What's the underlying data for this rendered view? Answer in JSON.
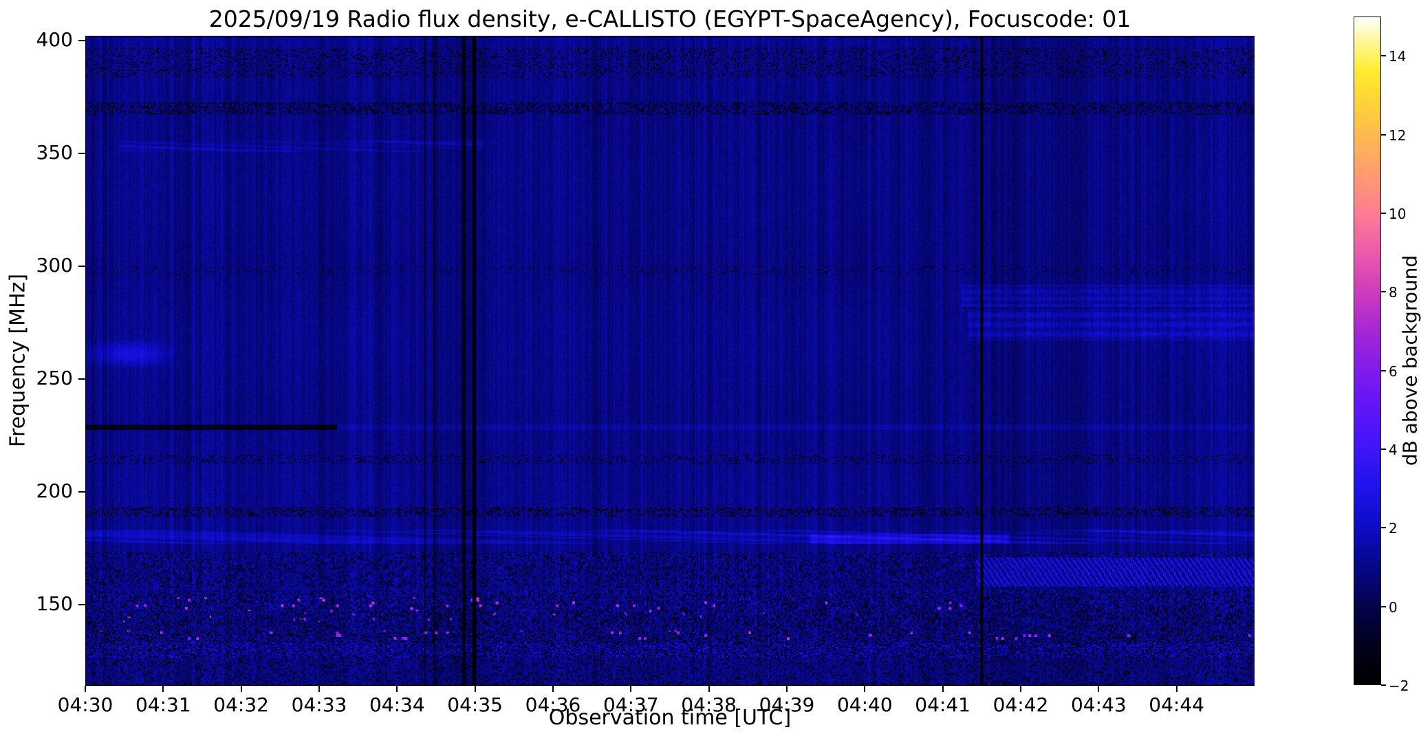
{
  "chart_data": {
    "type": "heatmap",
    "title": "2025/09/19  Radio flux density, e-CALLISTO (EGYPT-SpaceAgency), Focuscode: 01",
    "xlabel": "Observation time [UTC]",
    "ylabel": "Frequency [MHz]",
    "x_ticks": [
      "04:30",
      "04:31",
      "04:32",
      "04:33",
      "04:34",
      "04:35",
      "04:36",
      "04:37",
      "04:38",
      "04:39",
      "04:40",
      "04:41",
      "04:42",
      "04:43",
      "04:44"
    ],
    "x_range": [
      "04:30:00",
      "04:45:00"
    ],
    "y_ticks": [
      400,
      350,
      300,
      250,
      200,
      150
    ],
    "y_range": [
      402,
      114
    ],
    "grid": false,
    "colorbar": {
      "label": "dB above background",
      "vmin": -2,
      "vmax": 15,
      "ticks": [
        -2,
        0,
        2,
        4,
        6,
        8,
        10,
        12,
        14
      ],
      "tick_labels": [
        "−2",
        "0",
        "2",
        "4",
        "6",
        "8",
        "10",
        "12",
        "14"
      ]
    },
    "colormap_stops": [
      [
        0.0,
        "#000000"
      ],
      [
        0.055,
        "#01011a"
      ],
      [
        0.118,
        "#03034e"
      ],
      [
        0.176,
        "#07078b"
      ],
      [
        0.235,
        "#0d0dc6"
      ],
      [
        0.3,
        "#2113ee"
      ],
      [
        0.353,
        "#4214fb"
      ],
      [
        0.44,
        "#6e17f4"
      ],
      [
        0.53,
        "#a527d8"
      ],
      [
        0.59,
        "#cf3cbd"
      ],
      [
        0.65,
        "#ec5bab"
      ],
      [
        0.71,
        "#ff7e93"
      ],
      [
        0.78,
        "#ffa367"
      ],
      [
        0.853,
        "#ffc940"
      ],
      [
        0.92,
        "#ffeb2e"
      ],
      [
        0.965,
        "#fff795"
      ],
      [
        1.0,
        "#ffffff"
      ]
    ],
    "background_level_db": 0.8,
    "seed": 7,
    "features": [
      {
        "name": "band-390-dark-speckle",
        "f0": 384,
        "f1": 397,
        "t0": 0,
        "t1": 1,
        "type": "speckle",
        "p": 0.28,
        "lo": -2.2,
        "hi": 1.0
      },
      {
        "name": "band-370-dark-speckle",
        "f0": 367.5,
        "f1": 372.5,
        "t0": 0,
        "t1": 1,
        "type": "speckle",
        "p": 0.55,
        "lo": -2.5,
        "hi": 1.4
      },
      {
        "name": "band-353-bright-left",
        "f0": 351,
        "f1": 356,
        "t0": 0.03,
        "t1": 0.34,
        "type": "patchy",
        "amt": 1.1,
        "scale": 30
      },
      {
        "name": "band-298-faint-speckle",
        "f0": 296,
        "f1": 300.5,
        "t0": 0,
        "t1": 1,
        "type": "speckle",
        "p": 0.14,
        "lo": -1.6,
        "hi": 0.6
      },
      {
        "name": "band-287-right-bright",
        "f0": 282,
        "f1": 292,
        "t0": 0.75,
        "t1": 1,
        "type": "rowband",
        "amt": 1.2,
        "period": 3.2
      },
      {
        "name": "band-274-right-bright",
        "f0": 267,
        "f1": 281,
        "t0": 0.755,
        "t1": 1,
        "type": "rowband",
        "amt": 1.5,
        "period": 4.2
      },
      {
        "name": "blob-262-at-0430",
        "f0": 255,
        "f1": 267,
        "t0": 0.0,
        "t1": 0.075,
        "type": "blob",
        "amt": 1.5
      },
      {
        "name": "line-228-dark-left",
        "f0": 227,
        "f1": 229.5,
        "t0": 0,
        "t1": 0.215,
        "type": "add",
        "amt": -1.9
      },
      {
        "name": "line-228-bright-right",
        "f0": 227,
        "f1": 229.5,
        "t0": 0.215,
        "t1": 1,
        "type": "add",
        "amt": 0.45
      },
      {
        "name": "band-214-speckle",
        "f0": 212,
        "f1": 216,
        "t0": 0,
        "t1": 1,
        "type": "speckle",
        "p": 0.3,
        "lo": -1.8,
        "hi": 1.2
      },
      {
        "name": "band-191-dark-speckle",
        "f0": 189,
        "f1": 193,
        "t0": 0,
        "t1": 1,
        "type": "speckle",
        "p": 0.55,
        "lo": -2.5,
        "hi": 1.6
      },
      {
        "name": "band-179-bright-patchy",
        "f0": 176.5,
        "f1": 182.5,
        "t0": 0,
        "t1": 1,
        "type": "patchy",
        "amt": 1.5,
        "scale": 26
      },
      {
        "name": "band-179-bright-right",
        "f0": 177,
        "f1": 181,
        "t0": 0.62,
        "t1": 0.79,
        "type": "add",
        "amt": 1.1
      },
      {
        "name": "band-165-mixed-speckle",
        "f0": 157,
        "f1": 173,
        "t0": 0,
        "t1": 1,
        "type": "speckle",
        "p": 0.42,
        "lo": -2.3,
        "hi": 2.4
      },
      {
        "name": "band-164-right-hatch",
        "f0": 158,
        "f1": 170.5,
        "t0": 0.762,
        "t1": 1,
        "type": "hatch",
        "amt": 2.6
      },
      {
        "name": "band-151-speckle",
        "f0": 147,
        "f1": 156,
        "t0": 0,
        "t1": 1,
        "type": "speckle",
        "p": 0.5,
        "lo": -2.2,
        "hi": 2.6
      },
      {
        "name": "dots-148-magenta-left",
        "f0": 142,
        "f1": 153,
        "t0": 0.03,
        "t1": 0.36,
        "type": "dots",
        "p": 0.028,
        "val": 7.2
      },
      {
        "name": "dots-146-magenta-mid",
        "f0": 143,
        "f1": 151,
        "t0": 0.38,
        "t1": 0.78,
        "type": "dots",
        "p": 0.013,
        "val": 7.0
      },
      {
        "name": "band-139-speckle",
        "f0": 133,
        "f1": 147,
        "t0": 0,
        "t1": 1,
        "type": "speckle",
        "p": 0.55,
        "lo": -2.4,
        "hi": 2.2
      },
      {
        "name": "dots-136-magenta",
        "f0": 134,
        "f1": 138.5,
        "t0": 0,
        "t1": 1,
        "type": "dots",
        "p": 0.02,
        "val": 6.6
      },
      {
        "name": "band-130-bright-speckle",
        "f0": 126,
        "f1": 133,
        "t0": 0,
        "t1": 1,
        "type": "speckle",
        "p": 0.6,
        "lo": -1.6,
        "hi": 2.8
      },
      {
        "name": "band-120-bottom-mottle",
        "f0": 114,
        "f1": 126,
        "t0": 0,
        "t1": 1,
        "type": "speckle",
        "p": 0.4,
        "lo": -1.8,
        "hi": 1.6
      }
    ],
    "vertical_lines": [
      {
        "t": 0.2895,
        "w": 1,
        "amt": -2.2
      },
      {
        "t": 0.2985,
        "w": 1,
        "amt": -2.0
      },
      {
        "t": 0.316,
        "w": 30,
        "amt": -0.22
      },
      {
        "t": 0.3235,
        "w": 2,
        "amt": -5
      },
      {
        "t": 0.332,
        "w": 3,
        "amt": -6
      },
      {
        "t": 0.7675,
        "w": 2,
        "amt": -4.5
      }
    ]
  }
}
